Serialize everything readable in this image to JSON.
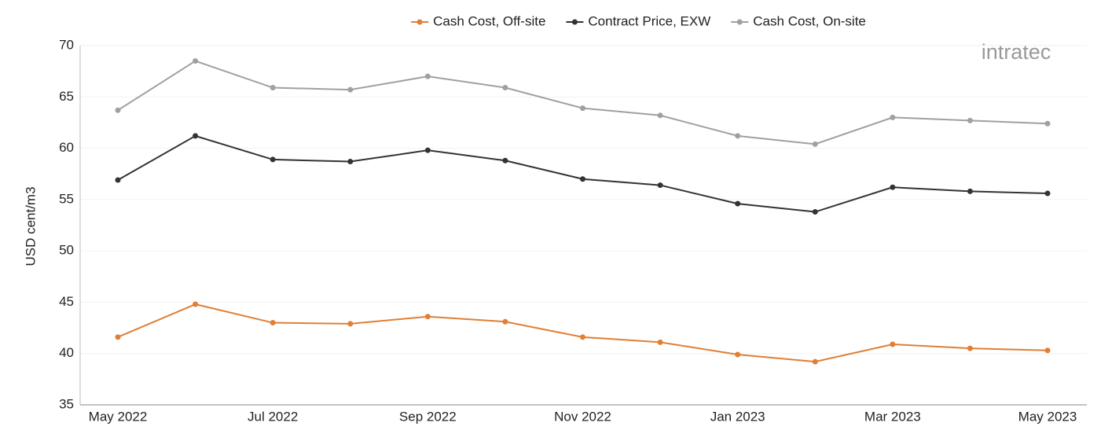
{
  "chart_data": {
    "type": "line",
    "logo": "intratec",
    "y_label": "USD cent/m3",
    "categories": [
      "May 2022",
      null,
      "Jul 2022",
      null,
      "Sep 2022",
      null,
      "Nov 2022",
      null,
      "Jan 2023",
      null,
      "Mar 2023",
      null,
      "May 2023"
    ],
    "series": [
      {
        "name": "Cash Cost, Off-site",
        "color": "#e07f35",
        "values": [
          41.6,
          44.8,
          43.0,
          42.9,
          43.6,
          43.1,
          41.6,
          41.1,
          39.9,
          39.2,
          40.9,
          40.5,
          40.3
        ]
      },
      {
        "name": "Contract Price, EXW",
        "color": "#333333",
        "values": [
          56.9,
          61.2,
          58.9,
          58.7,
          59.8,
          58.8,
          57.0,
          56.4,
          54.6,
          53.8,
          56.2,
          55.8,
          55.6
        ]
      },
      {
        "name": "Cash Cost, On-site",
        "color": "#a0a0a0",
        "values": [
          63.7,
          68.5,
          65.9,
          65.7,
          67.0,
          65.9,
          63.9,
          63.2,
          61.2,
          60.4,
          63.0,
          62.7,
          62.4
        ]
      }
    ],
    "ylim": [
      35,
      70
    ],
    "yticks": [
      35,
      40,
      45,
      50,
      55,
      60,
      65,
      70
    ],
    "grid": true,
    "legend": "top"
  }
}
